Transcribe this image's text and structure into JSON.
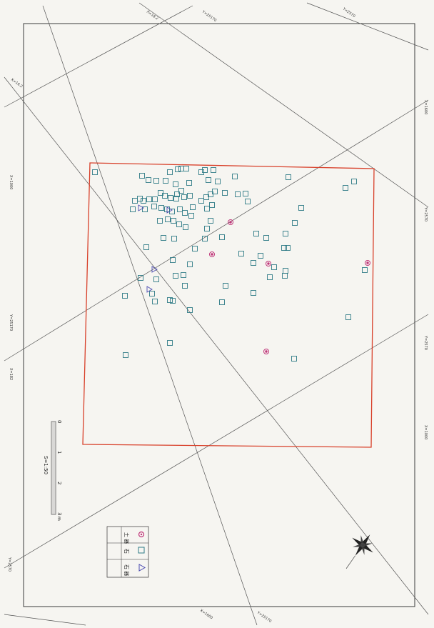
{
  "map": {
    "scale_bar": {
      "ratio_label": "S=1:50",
      "ticks": [
        "0",
        "1",
        "2",
        "3"
      ],
      "unit": "m"
    },
    "legend": [
      {
        "symbol": "circle-icon",
        "label": "土 器",
        "color": "#c0367a"
      },
      {
        "symbol": "square-icon",
        "label": "石",
        "color": "#2e7a86"
      },
      {
        "symbol": "triangle-icon",
        "label": "石 器",
        "color": "#4a4ab0"
      }
    ],
    "grid_labels": [
      "Y=25170",
      "X=18.2",
      "Y=2570",
      "X=16.2",
      "X=1000",
      "Y=25170",
      "X=182",
      "Y=2570",
      "X=1600",
      "Y=2570",
      "X=1000",
      "Y=2570",
      "X=1600",
      "Y=25170"
    ],
    "colors": {
      "excavation_outline": "#d8402a",
      "grid_line": "#555555",
      "frame": "#3a3a3a",
      "sherd": "#c0367a",
      "stone": "#2e7a86",
      "stone_tool": "#4a4ab0"
    },
    "compass": {
      "symbol": "compass-rose-icon"
    }
  }
}
